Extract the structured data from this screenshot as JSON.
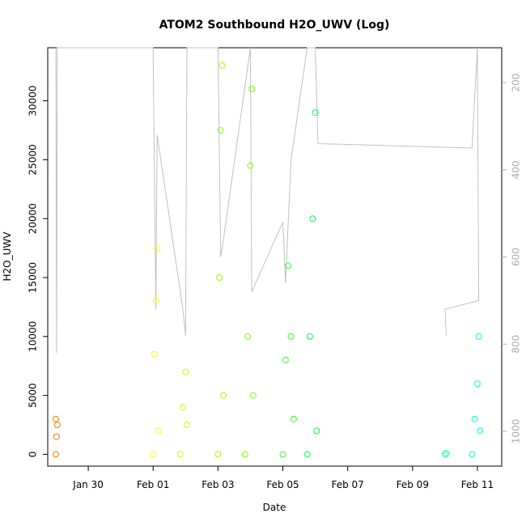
{
  "chart_data": {
    "type": "scatter",
    "title": "ATOM2 Southbound H2O_UWV (Log)",
    "xlabel": "Date",
    "ylabel": "H2O_UWV",
    "x_range_days": [
      -2.25,
      10.75
    ],
    "xlim_labels": [
      "Jan 28 18:00",
      "Feb 11 18:00"
    ],
    "ylim": [
      -1000,
      34500
    ],
    "y_ticks": [
      0,
      5000,
      10000,
      15000,
      20000,
      25000,
      30000
    ],
    "x_ticks": [
      "Jan 30",
      "Feb 01",
      "Feb 03",
      "Feb 05",
      "Feb 07",
      "Feb 09",
      "Feb 11"
    ],
    "x_tick_dates": [
      "2017-01-30",
      "2017-02-01",
      "2017-02-03",
      "2017-02-05",
      "2017-02-07",
      "2017-02-09",
      "2017-02-11"
    ],
    "secondary_axis": {
      "label": "",
      "ticks": [
        200,
        400,
        600,
        800,
        1000
      ],
      "ylim": [
        120,
        1080
      ],
      "reversed": true,
      "color": "#aaaaaa"
    },
    "series": [
      {
        "color": "#ff7700",
        "points": [
          [
            "2017-01-29 00:00",
            0
          ],
          [
            "2017-01-29 00:00",
            3000
          ],
          [
            "2017-01-29 00:30",
            1500
          ],
          [
            "2017-01-29 01:00",
            2500
          ]
        ]
      },
      {
        "color": "#eeff00",
        "points": [
          [
            "2017-02-01 00:00",
            0
          ],
          [
            "2017-02-01 01:00",
            8500
          ],
          [
            "2017-02-01 02:00",
            13000
          ],
          [
            "2017-02-01 03:00",
            17500
          ],
          [
            "2017-02-01 04:00",
            2000
          ]
        ]
      },
      {
        "color": "#ccff00",
        "points": [
          [
            "2017-02-01 20:00",
            0
          ],
          [
            "2017-02-01 22:00",
            4000
          ],
          [
            "2017-02-02 00:00",
            7000
          ],
          [
            "2017-02-02 01:00",
            2500
          ]
        ]
      },
      {
        "color": "#99ff00",
        "points": [
          [
            "2017-02-03 00:00",
            0
          ],
          [
            "2017-02-03 01:00",
            15000
          ],
          [
            "2017-02-03 02:00",
            27500
          ],
          [
            "2017-02-03 03:00",
            33000
          ],
          [
            "2017-02-03 04:00",
            5000
          ]
        ]
      },
      {
        "color": "#77ff00",
        "points": [
          [
            "2017-02-03 20:00",
            0
          ],
          [
            "2017-02-03 22:00",
            10000
          ],
          [
            "2017-02-04 00:00",
            24500
          ],
          [
            "2017-02-04 01:00",
            31000
          ],
          [
            "2017-02-04 02:00",
            5000
          ]
        ]
      },
      {
        "color": "#33ff22",
        "points": [
          [
            "2017-02-05 00:00",
            0
          ],
          [
            "2017-02-05 02:00",
            8000
          ],
          [
            "2017-02-05 04:00",
            16000
          ],
          [
            "2017-02-05 06:00",
            10000
          ],
          [
            "2017-02-05 08:00",
            3000
          ]
        ]
      },
      {
        "color": "#00ff44",
        "points": [
          [
            "2017-02-05 18:00",
            0
          ],
          [
            "2017-02-05 20:00",
            10000
          ],
          [
            "2017-02-05 22:00",
            20000
          ],
          [
            "2017-02-06 00:00",
            29000
          ],
          [
            "2017-02-06 01:00",
            2000
          ]
        ]
      },
      {
        "color": "#22ff99",
        "points": [
          [
            "2017-02-10 00:00",
            0
          ],
          [
            "2017-02-10 01:00",
            100
          ]
        ]
      },
      {
        "color": "#00ffcc",
        "points": [
          [
            "2017-02-10 20:00",
            0
          ],
          [
            "2017-02-10 22:00",
            3000
          ],
          [
            "2017-02-11 00:00",
            6000
          ],
          [
            "2017-02-11 01:00",
            10000
          ],
          [
            "2017-02-11 02:00",
            2000
          ]
        ]
      }
    ],
    "pressure_trace": {
      "color": "#c0c0c0",
      "points": [
        [
          "2017-01-29 00:00",
          120
        ],
        [
          "2017-01-29 00:30",
          820
        ],
        [
          "2017-01-29 01:00",
          120
        ],
        [
          "2017-02-01 00:00",
          120
        ],
        [
          "2017-02-01 02:00",
          720
        ],
        [
          "2017-02-01 03:00",
          320
        ],
        [
          "2017-02-01 22:00",
          720
        ],
        [
          "2017-02-02 00:00",
          780
        ],
        [
          "2017-02-02 01:00",
          120
        ],
        [
          "2017-02-03 00:00",
          120
        ],
        [
          "2017-02-03 02:00",
          600
        ],
        [
          "2017-02-03 04:00",
          560
        ],
        [
          "2017-02-04 00:00",
          120
        ],
        [
          "2017-02-04 01:00",
          680
        ],
        [
          "2017-02-05 00:00",
          520
        ],
        [
          "2017-02-05 02:00",
          660
        ],
        [
          "2017-02-05 06:00",
          380
        ],
        [
          "2017-02-05 18:00",
          120
        ],
        [
          "2017-02-06 00:00",
          120
        ],
        [
          "2017-02-06 02:00",
          340
        ],
        [
          "2017-02-10 20:00",
          350
        ],
        [
          "2017-02-11 00:00",
          120
        ],
        [
          "2017-02-11 01:00",
          700
        ],
        [
          "2017-02-10 00:00",
          720
        ],
        [
          "2017-02-10 01:00",
          780
        ]
      ]
    }
  }
}
